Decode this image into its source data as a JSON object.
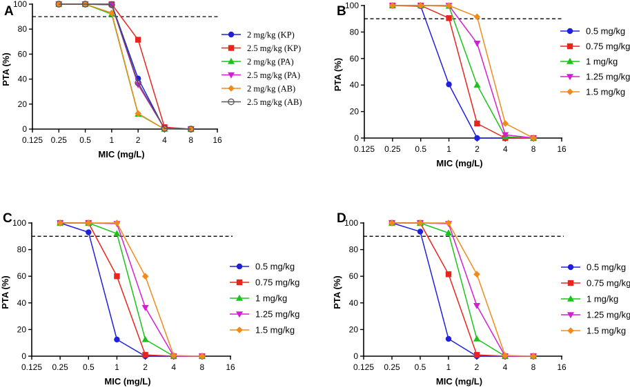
{
  "chart_data": [
    {
      "panel": "A",
      "type": "line",
      "xscale": "log2",
      "x_ticks": [
        "0.125",
        "0.25",
        "0.5",
        "1",
        "2",
        "4",
        "8",
        "16"
      ],
      "xlim": [
        0.125,
        16
      ],
      "ylim": [
        0,
        100
      ],
      "y_ticks": [
        "0",
        "20",
        "40",
        "60",
        "80",
        "100"
      ],
      "xlabel": "MIC (mg/L)",
      "ylabel": "PTA (%)",
      "threshold": 90,
      "legend_font": "serif",
      "x": [
        0.25,
        0.5,
        1,
        2,
        4,
        8
      ],
      "series": [
        {
          "name": "2 mg/kg (KP)",
          "color": "#1f1fe0",
          "marker": "circle",
          "values": [
            100,
            100,
            100,
            40.5,
            0,
            0
          ]
        },
        {
          "name": "2.5 mg/kg (KP)",
          "color": "#e8241c",
          "marker": "square",
          "values": [
            100,
            100,
            100,
            71.5,
            1.5,
            0
          ]
        },
        {
          "name": "2 mg/kg (PA)",
          "color": "#19c419",
          "marker": "triangle-up",
          "values": [
            100,
            100,
            92,
            12,
            0,
            0
          ]
        },
        {
          "name": "2.5 mg/kg (PA)",
          "color": "#d21fd2",
          "marker": "triangle-down",
          "values": [
            100,
            100,
            99.5,
            35.5,
            0.5,
            0
          ]
        },
        {
          "name": "2 mg/kg (AB)",
          "color": "#f08a1c",
          "marker": "diamond",
          "values": [
            100,
            100,
            93,
            12.5,
            0,
            0
          ]
        },
        {
          "name": "2.5 mg/kg (AB)",
          "color": "#555555",
          "marker": "open-circle",
          "values": [
            100,
            100,
            99.5,
            37,
            0.5,
            0
          ]
        }
      ]
    },
    {
      "panel": "B",
      "type": "line",
      "xscale": "log2",
      "x_ticks": [
        "0.125",
        "0.25",
        "0.5",
        "1",
        "2",
        "4",
        "8",
        "16"
      ],
      "xlim": [
        0.125,
        16
      ],
      "ylim": [
        0,
        100
      ],
      "y_ticks": [
        "0",
        "20",
        "40",
        "60",
        "80",
        "100"
      ],
      "xlabel": "MIC (mg/L)",
      "ylabel": "PTA (%)",
      "threshold": 90,
      "legend_font": "sans",
      "x": [
        0.25,
        0.5,
        1,
        2,
        4,
        8
      ],
      "series": [
        {
          "name": "0.5 mg/kg",
          "color": "#1f1fe0",
          "marker": "circle",
          "values": [
            100,
            99.5,
            40.5,
            0,
            0,
            0
          ]
        },
        {
          "name": "0.75 mg/kg",
          "color": "#e8241c",
          "marker": "square",
          "values": [
            100,
            100,
            90.5,
            11,
            0,
            0
          ]
        },
        {
          "name": "1 mg/kg",
          "color": "#19c419",
          "marker": "triangle-up",
          "values": [
            100,
            100,
            99.5,
            40,
            1,
            0
          ]
        },
        {
          "name": "1.25 mg/kg",
          "color": "#d21fd2",
          "marker": "triangle-down",
          "values": [
            100,
            100,
            100,
            71.5,
            2.5,
            0
          ]
        },
        {
          "name": "1.5 mg/kg",
          "color": "#f08a1c",
          "marker": "diamond",
          "values": [
            100,
            100,
            100,
            91.5,
            11,
            0
          ]
        }
      ]
    },
    {
      "panel": "C",
      "type": "line",
      "xscale": "log2",
      "x_ticks": [
        "0.125",
        "0.25",
        "0.5",
        "1",
        "2",
        "4",
        "8",
        "16"
      ],
      "xlim": [
        0.125,
        16
      ],
      "ylim": [
        0,
        100
      ],
      "y_ticks": [
        "0",
        "20",
        "40",
        "60",
        "80",
        "100"
      ],
      "xlabel": "MIC (mg/L)",
      "ylabel": "PTA (%)",
      "threshold": 90,
      "legend_font": "sans",
      "x": [
        0.25,
        0.5,
        1,
        2,
        4,
        8
      ],
      "series": [
        {
          "name": "0.5 mg/kg",
          "color": "#1f1fe0",
          "marker": "circle",
          "values": [
            100,
            93,
            12.5,
            0,
            0,
            0
          ]
        },
        {
          "name": "0.75 mg/kg",
          "color": "#e8241c",
          "marker": "square",
          "values": [
            100,
            100,
            60,
            1,
            0,
            0
          ]
        },
        {
          "name": "1 mg/kg",
          "color": "#19c419",
          "marker": "triangle-up",
          "values": [
            100,
            100,
            92,
            12.5,
            0,
            0
          ]
        },
        {
          "name": "1.25 mg/kg",
          "color": "#d21fd2",
          "marker": "triangle-down",
          "values": [
            100,
            100,
            99.5,
            36.5,
            0,
            0
          ]
        },
        {
          "name": "1.5 mg/kg",
          "color": "#f08a1c",
          "marker": "diamond",
          "values": [
            100,
            100,
            100,
            60,
            0.5,
            0
          ]
        }
      ]
    },
    {
      "panel": "D",
      "type": "line",
      "xscale": "log2",
      "x_ticks": [
        "0.125",
        "0.25",
        "0.5",
        "1",
        "2",
        "4",
        "8",
        "16"
      ],
      "xlim": [
        0.125,
        16
      ],
      "ylim": [
        0,
        100
      ],
      "y_ticks": [
        "0",
        "20",
        "40",
        "60",
        "80",
        "100"
      ],
      "xlabel": "MIC (mg/L)",
      "ylabel": "PTA (%)",
      "threshold": 90,
      "legend_font": "sans",
      "x": [
        0.25,
        0.5,
        1,
        2,
        4,
        8
      ],
      "series": [
        {
          "name": "0.5 mg/kg",
          "color": "#1f1fe0",
          "marker": "circle",
          "values": [
            100,
            93.5,
            13,
            0,
            0,
            0
          ]
        },
        {
          "name": "0.75 mg/kg",
          "color": "#e8241c",
          "marker": "square",
          "values": [
            100,
            100,
            61.5,
            1,
            0,
            0
          ]
        },
        {
          "name": "1 mg/kg",
          "color": "#19c419",
          "marker": "triangle-up",
          "values": [
            100,
            100,
            92.5,
            13,
            0,
            0
          ]
        },
        {
          "name": "1.25 mg/kg",
          "color": "#d21fd2",
          "marker": "triangle-down",
          "values": [
            100,
            100,
            99.5,
            38,
            0,
            0
          ]
        },
        {
          "name": "1.5 mg/kg",
          "color": "#f08a1c",
          "marker": "diamond",
          "values": [
            100,
            100,
            100,
            61.5,
            0.5,
            0
          ]
        }
      ]
    }
  ]
}
